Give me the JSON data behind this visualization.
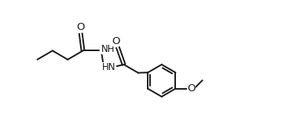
{
  "background_color": "#ffffff",
  "line_color": "#1a1a1a",
  "line_width": 1.4,
  "font_size": 8.5,
  "xlim": [
    0,
    11
  ],
  "ylim": [
    0,
    4
  ],
  "figsize": [
    3.87,
    1.5
  ],
  "dpi": 100
}
